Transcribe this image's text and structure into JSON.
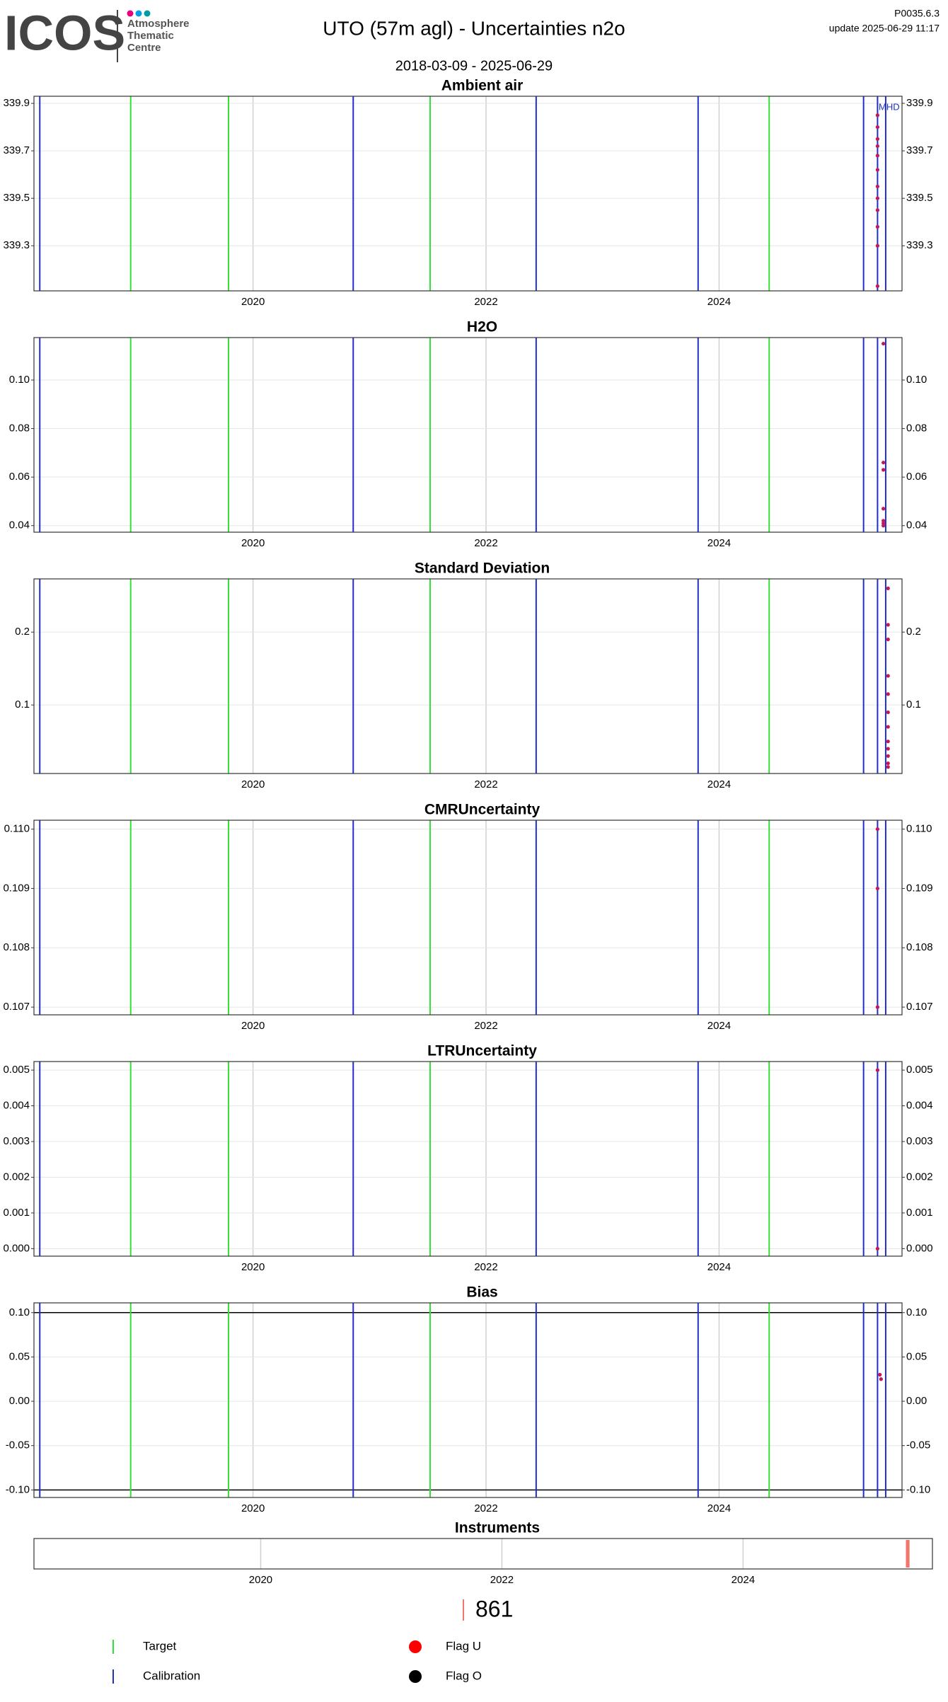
{
  "header": {
    "logo": {
      "name": "ICOS",
      "lines": [
        "Atmosphere",
        "Thematic",
        "Centre"
      ]
    },
    "title": "UTO  (57m agl) - Uncertainties n2o",
    "period": "2018-03-09 - 2025-06-29",
    "version": "P0035.6.3",
    "update": "update  2025-06-29 11:17"
  },
  "events": {
    "target": {
      "name": "Target",
      "color": "#33e033",
      "x": [
        2018.95,
        2019.79,
        2021.52,
        2024.43
      ]
    },
    "calibration": {
      "name": "Calibration",
      "color": "#1f2fc8",
      "x": [
        2018.17,
        2020.86,
        2022.43,
        2023.82,
        2025.24,
        2025.36,
        2025.43
      ]
    }
  },
  "flags": [
    {
      "name": "Flag U",
      "color": "#ff0000"
    },
    {
      "name": "Flag O",
      "color": "#000000"
    }
  ],
  "chart_data": [
    {
      "type": "scatter",
      "title": "Ambient air",
      "color": "#c2185b",
      "events": true,
      "annotation": {
        "text": "MHD N",
        "x": 2025.37
      },
      "xlim": [
        2018.12,
        2025.57
      ],
      "xticks": [
        2020,
        2022,
        2024
      ],
      "ylim": [
        339.11,
        339.93
      ],
      "yticks": [
        339.3,
        339.5,
        339.7,
        339.9
      ],
      "x": [
        2025.36,
        2025.36,
        2025.36,
        2025.36,
        2025.36,
        2025.36,
        2025.36,
        2025.36,
        2025.36,
        2025.36,
        2025.36,
        2025.36
      ],
      "values": [
        339.85,
        339.8,
        339.75,
        339.72,
        339.68,
        339.62,
        339.55,
        339.5,
        339.45,
        339.38,
        339.3,
        339.13
      ]
    },
    {
      "type": "scatter",
      "title": "H2O",
      "color": "#c2185b",
      "events": true,
      "xlim": [
        2018.12,
        2025.57
      ],
      "xticks": [
        2020,
        2022,
        2024
      ],
      "ylim": [
        0.0373,
        0.1175
      ],
      "yticks": [
        0.04,
        0.06,
        0.08,
        {
          "value": 0.1,
          "label": "0.10"
        }
      ],
      "x": [
        2025.41,
        2025.41,
        2025.41,
        2025.41,
        2025.41,
        2025.41,
        2025.41
      ],
      "values": [
        0.115,
        0.066,
        0.063,
        0.047,
        0.042,
        0.041,
        0.04
      ]
    },
    {
      "type": "scatter",
      "title": "Standard Deviation",
      "color": "#c2185b",
      "events": true,
      "xlim": [
        2018.12,
        2025.57
      ],
      "xticks": [
        2020,
        2022,
        2024
      ],
      "ylim": [
        0.006,
        0.273
      ],
      "yticks": [
        0.1,
        0.2
      ],
      "x": [
        2025.45,
        2025.45,
        2025.45,
        2025.45,
        2025.45,
        2025.45,
        2025.45,
        2025.45,
        2025.45,
        2025.45,
        2025.45,
        2025.45
      ],
      "values": [
        0.26,
        0.21,
        0.19,
        0.14,
        0.115,
        0.09,
        0.07,
        0.05,
        0.04,
        0.03,
        0.02,
        0.015
      ]
    },
    {
      "type": "scatter",
      "title": "CMRUncertainty",
      "color": "#c2185b",
      "events": true,
      "xlim": [
        2018.12,
        2025.57
      ],
      "xticks": [
        2020,
        2022,
        2024
      ],
      "ylim": [
        0.10687,
        0.11015
      ],
      "yticks": [
        0.107,
        0.108,
        0.109,
        {
          "value": 0.11,
          "label": "0.110"
        }
      ],
      "x": [
        2025.36,
        2025.36,
        2025.36
      ],
      "values": [
        0.11,
        0.109,
        0.107
      ]
    },
    {
      "type": "scatter",
      "title": "LTRUncertainty",
      "color": "#c2185b",
      "events": true,
      "xlim": [
        2018.12,
        2025.57
      ],
      "xticks": [
        2020,
        2022,
        2024
      ],
      "ylim": [
        -0.00021,
        0.00524
      ],
      "yticks": [
        {
          "value": 0,
          "label": "0.000"
        },
        0.001,
        0.002,
        0.003,
        0.004,
        0.005
      ],
      "x": [
        2025.36,
        2025.36
      ],
      "values": [
        0.005,
        0
      ]
    },
    {
      "type": "scatter",
      "title": "Bias",
      "color": "#c2185b",
      "events": true,
      "reference_lines": [
        0.1,
        -0.1
      ],
      "xlim": [
        2018.12,
        2025.57
      ],
      "xticks": [
        2020,
        2022,
        2024
      ],
      "ylim": [
        -0.1085,
        0.111
      ],
      "yticks": [
        {
          "value": -0.1,
          "label": "-0.10"
        },
        -0.05,
        {
          "value": 0,
          "label": "0.00"
        },
        0.05,
        {
          "value": 0.1,
          "label": "0.10"
        }
      ],
      "x": [
        2025.38,
        2025.39
      ],
      "values": [
        0.03,
        0.025
      ]
    },
    {
      "type": "timeline",
      "title": "Instruments",
      "events": false,
      "xlim": [
        2018.12,
        2025.57
      ],
      "xticks": [
        2020,
        2022,
        2024
      ],
      "bars": [
        {
          "name": "861",
          "color": "#f4756b",
          "start": 2025.35,
          "end": 2025.38
        }
      ]
    }
  ]
}
